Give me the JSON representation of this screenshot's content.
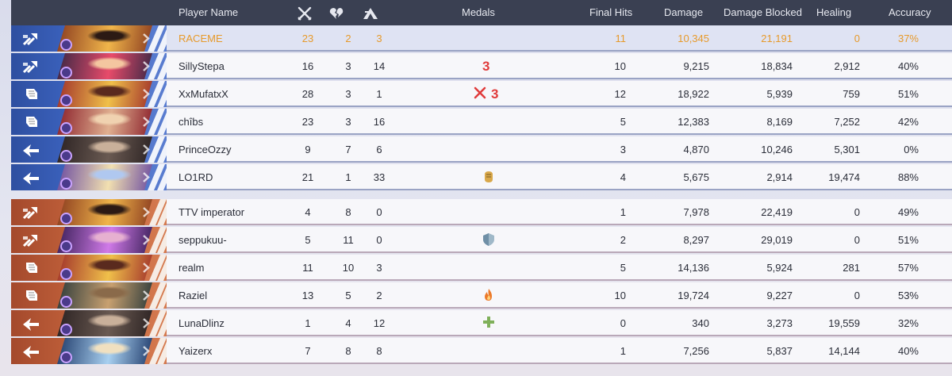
{
  "header": {
    "player_name": "Player Name",
    "kills_icon": "crossed-swords-icon",
    "deaths_icon": "broken-heart-icon",
    "assists_icon": "assist-icon",
    "medals": "Medals",
    "final_hits": "Final Hits",
    "damage": "Damage",
    "damage_blocked": "Damage Blocked",
    "healing": "Healing",
    "accuracy": "Accuracy"
  },
  "colors": {
    "header_bg": "#3a4052",
    "ally": "#3c63bf",
    "enemy": "#c0603a",
    "self_text": "#e79a2b"
  },
  "ally_team": [
    {
      "name": "RACEME",
      "k": "23",
      "d": "2",
      "a": "3",
      "medals": [],
      "final_hits": "11",
      "damage": "10,345",
      "blocked": "21,191",
      "healing": "0",
      "accuracy": "37%",
      "role": "vanguard-icon",
      "self": true
    },
    {
      "name": "SillyStepa",
      "k": "16",
      "d": "3",
      "a": "14",
      "medals": [
        "3-medal-icon"
      ],
      "final_hits": "10",
      "damage": "9,215",
      "blocked": "18,834",
      "healing": "2,912",
      "accuracy": "40%",
      "role": "vanguard-icon"
    },
    {
      "name": "XxMufatxX",
      "k": "28",
      "d": "3",
      "a": "1",
      "medals": [
        "swords-medal-icon",
        "3-medal-icon"
      ],
      "final_hits": "12",
      "damage": "18,922",
      "blocked": "5,939",
      "healing": "759",
      "accuracy": "51%",
      "role": "duelist-icon"
    },
    {
      "name": "chîbs",
      "k": "23",
      "d": "3",
      "a": "16",
      "medals": [],
      "final_hits": "5",
      "damage": "12,383",
      "blocked": "8,169",
      "healing": "7,252",
      "accuracy": "42%",
      "role": "duelist-icon"
    },
    {
      "name": "PrinceOzzy",
      "k": "9",
      "d": "7",
      "a": "6",
      "medals": [],
      "final_hits": "3",
      "damage": "4,870",
      "blocked": "10,246",
      "healing": "5,301",
      "accuracy": "0%",
      "role": "strategist-icon"
    },
    {
      "name": "LO1RD",
      "k": "21",
      "d": "1",
      "a": "33",
      "medals": [
        "fist-medal-icon"
      ],
      "final_hits": "4",
      "damage": "5,675",
      "blocked": "2,914",
      "healing": "19,474",
      "accuracy": "88%",
      "role": "strategist-icon"
    }
  ],
  "enemy_team": [
    {
      "name": "TTV imperator",
      "k": "4",
      "d": "8",
      "a": "0",
      "medals": [],
      "final_hits": "1",
      "damage": "7,978",
      "blocked": "22,419",
      "healing": "0",
      "accuracy": "49%",
      "role": "vanguard-icon"
    },
    {
      "name": "seppukuu-",
      "k": "5",
      "d": "11",
      "a": "0",
      "medals": [
        "shield-medal-icon"
      ],
      "final_hits": "2",
      "damage": "8,297",
      "blocked": "29,019",
      "healing": "0",
      "accuracy": "51%",
      "role": "vanguard-icon"
    },
    {
      "name": "realm",
      "k": "11",
      "d": "10",
      "a": "3",
      "medals": [],
      "final_hits": "5",
      "damage": "14,136",
      "blocked": "5,924",
      "healing": "281",
      "accuracy": "57%",
      "role": "duelist-icon"
    },
    {
      "name": "Raziel",
      "k": "13",
      "d": "5",
      "a": "2",
      "medals": [
        "flame-medal-icon"
      ],
      "final_hits": "10",
      "damage": "19,724",
      "blocked": "9,227",
      "healing": "0",
      "accuracy": "53%",
      "role": "duelist-icon"
    },
    {
      "name": "LunaDlinz",
      "k": "1",
      "d": "4",
      "a": "12",
      "medals": [
        "cross-medal-icon"
      ],
      "final_hits": "0",
      "damage": "340",
      "blocked": "3,273",
      "healing": "19,559",
      "accuracy": "32%",
      "role": "strategist-icon"
    },
    {
      "name": "Yaizerx",
      "k": "7",
      "d": "8",
      "a": "8",
      "medals": [],
      "final_hits": "1",
      "damage": "7,256",
      "blocked": "5,837",
      "healing": "14,144",
      "accuracy": "40%",
      "role": "strategist-icon"
    }
  ]
}
